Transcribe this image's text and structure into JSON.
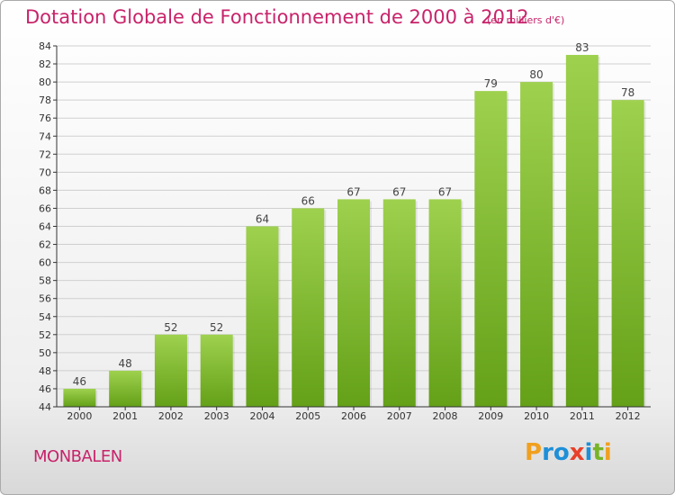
{
  "title": "Dotation Globale de Fonctionnement de 2000 à 2012",
  "subtitle": "(en milliers d'€)",
  "commune": "MONBALEN",
  "logo": {
    "letters": [
      "P",
      "r",
      "o",
      "x",
      "i",
      "t",
      "i"
    ],
    "colors": [
      "#f0a020",
      "#1e8fd8",
      "#1e8fd8",
      "#e8402a",
      "#1e8fd8",
      "#78b428",
      "#f0a020"
    ]
  },
  "chart_data": {
    "type": "bar",
    "title": "Dotation Globale de Fonctionnement de 2000 à 2012",
    "subtitle": "(en milliers d'€)",
    "categories": [
      "2000",
      "2001",
      "2002",
      "2003",
      "2004",
      "2005",
      "2006",
      "2007",
      "2008",
      "2009",
      "2010",
      "2011",
      "2012"
    ],
    "values": [
      46,
      48,
      52,
      52,
      64,
      66,
      67,
      67,
      67,
      79,
      80,
      83,
      78
    ],
    "xlabel": "",
    "ylabel": "",
    "ylim": [
      44,
      84
    ],
    "ytick_step": 2,
    "grid": true,
    "colors": {
      "bar_top": "#9ed14e",
      "bar_bottom": "#64a018",
      "label": "#444444",
      "axis": "#333333"
    }
  }
}
